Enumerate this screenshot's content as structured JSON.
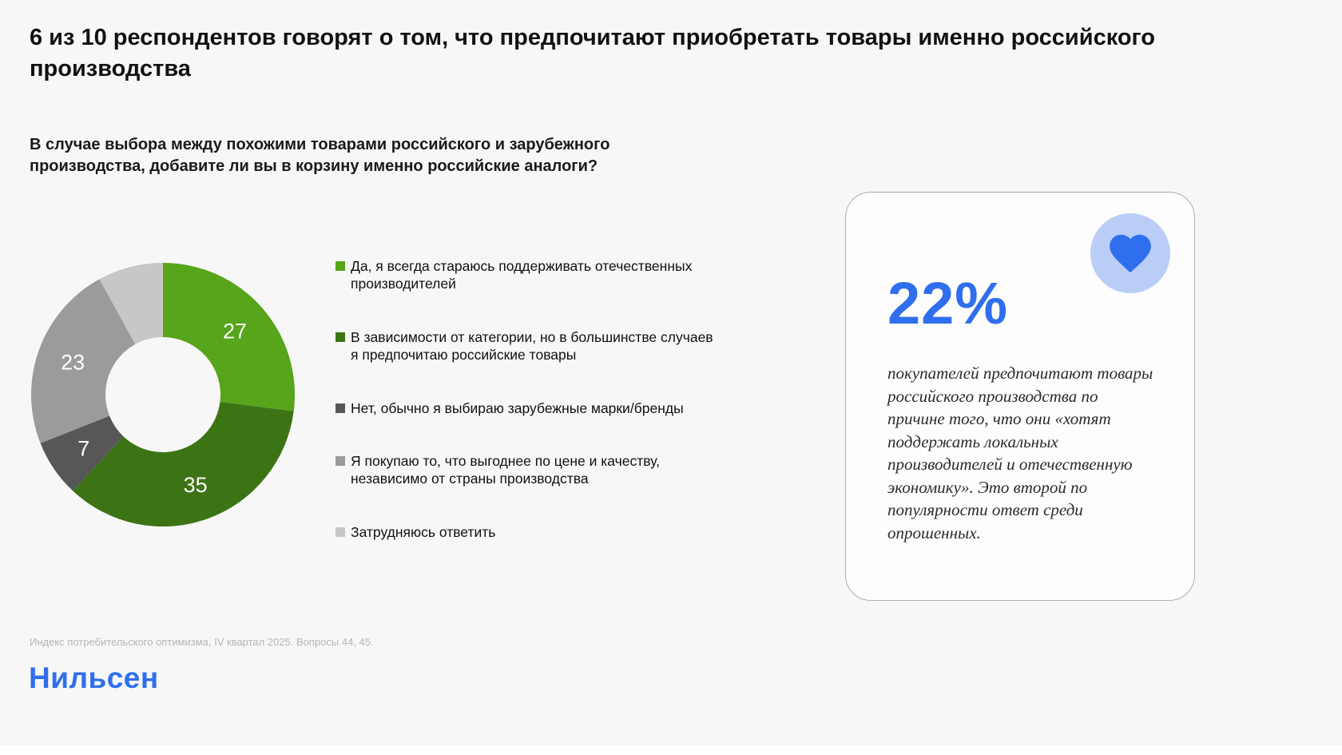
{
  "page": {
    "title": "6 из 10 респондентов говорят о том, что предпочитают приобретать товары именно российского производства",
    "question": "В случае выбора между похожими товарами российского и зарубежного производства, добавите ли вы в корзину именно российские аналоги?",
    "source_note": "Индекс потребительского оптимизма, IV квартал 2025. Вопросы 44, 45.",
    "logo_text": "Нильсен"
  },
  "chart_data": {
    "type": "pie",
    "donut": true,
    "title": "В случае выбора между похожими товарами российского и зарубежного производства, добавите ли вы в корзину именно российские аналоги?",
    "categories": [
      "Да, я всегда стараюсь поддерживать отечественных производителей",
      "В зависимости от категории, но в большинстве случаев я предпочитаю российские товары",
      "Нет, обычно я выбираю зарубежные марки/бренды",
      "Я покупаю то, что выгоднее по цене и качеству, независимо от страны производства",
      "Затрудняюсь ответить"
    ],
    "values": [
      27,
      35,
      7,
      23,
      8
    ],
    "data_labels": [
      "27",
      "35",
      "7",
      "23",
      ""
    ],
    "colors": [
      "#56a51a",
      "#3c7314",
      "#575757",
      "#9b9b9b",
      "#c7c7c7"
    ],
    "legend_position": "right",
    "start_angle_deg": -90,
    "direction": "clockwise"
  },
  "highlight_card": {
    "stat": "22%",
    "text": "покупателей предпочитают товары российского производства по причине того, что они «хотят поддержать локальных производителей и отечественную экономику». Это второй по популярности ответ среди опрошенных.",
    "icon": "heart-icon",
    "accent_color": "#2f6fed",
    "icon_bg_color": "#b9cdf7"
  }
}
